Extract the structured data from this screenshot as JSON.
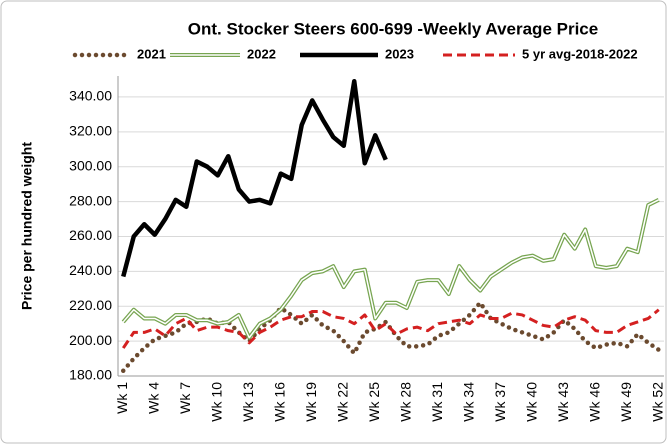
{
  "chart_data": {
    "type": "line",
    "title": "Ont. Stocker Steers 600-699 -Weekly Average Price",
    "y_label": "Price per hundred weight",
    "categories": [
      "Wk 1",
      null,
      null,
      "Wk 4",
      null,
      null,
      "Wk 7",
      null,
      null,
      "Wk 10",
      null,
      null,
      "Wk 13",
      null,
      null,
      "Wk 16",
      null,
      null,
      "Wk 19",
      null,
      null,
      "Wk 22",
      null,
      null,
      "Wk 25",
      null,
      null,
      "Wk 28",
      null,
      null,
      "Wk 31",
      null,
      null,
      "Wk 34",
      null,
      null,
      "Wk 37",
      null,
      null,
      "Wk 40",
      null,
      null,
      "Wk 43",
      null,
      null,
      "Wk 46",
      null,
      null,
      "Wk 49",
      null,
      null,
      "Wk 52"
    ],
    "series": [
      {
        "name": "2021",
        "color": "#6b4a2f",
        "line_style": "dotted",
        "values": [
          183,
          190,
          196,
          201,
          203,
          205,
          210,
          211,
          213,
          210,
          211,
          205,
          200,
          207,
          212,
          219,
          215,
          210,
          215,
          209,
          206,
          200,
          193,
          205,
          207,
          211,
          203,
          197,
          197,
          198,
          203,
          205,
          210,
          215,
          222,
          213,
          210,
          207,
          205,
          203,
          201,
          205,
          212,
          207,
          200,
          196,
          198,
          199,
          197,
          204,
          199,
          195
        ]
      },
      {
        "name": "2022",
        "color": "#77a551",
        "line_style": "double",
        "values": [
          211,
          218,
          213,
          213,
          210,
          215,
          215,
          212,
          212,
          210,
          211,
          215,
          202,
          210,
          213,
          218,
          226,
          235,
          239,
          240,
          243,
          231,
          240,
          241,
          213,
          222,
          222,
          219,
          234,
          235,
          235,
          227,
          243,
          235,
          229,
          237,
          241,
          245,
          248,
          249,
          246,
          247,
          261,
          253,
          264,
          243,
          242,
          243,
          253,
          251,
          278,
          281
        ]
      },
      {
        "name": "2023",
        "color": "#000000",
        "line_style": "solid",
        "values": [
          237,
          260,
          267,
          261,
          270,
          281,
          277,
          303,
          300,
          295,
          306,
          287,
          280,
          281,
          279,
          296,
          293,
          324,
          338,
          327,
          317,
          312,
          349,
          302,
          318,
          304,
          null,
          null,
          null,
          null,
          null,
          null,
          null,
          null,
          null,
          null,
          null,
          null,
          null,
          null,
          null,
          null,
          null,
          null,
          null,
          null,
          null,
          null,
          null,
          null,
          null,
          null
        ]
      },
      {
        "name": "5 yr avg-2018-2022",
        "color": "#d42020",
        "line_style": "dashed",
        "values": [
          196,
          205,
          205,
          207,
          203,
          210,
          213,
          206,
          208,
          208,
          206,
          205,
          199,
          205,
          208,
          212,
          214,
          214,
          217,
          217,
          214,
          213,
          210,
          215,
          206,
          210,
          204,
          207,
          208,
          206,
          210,
          211,
          212,
          210,
          215,
          213,
          213,
          216,
          215,
          212,
          209,
          208,
          212,
          214,
          212,
          206,
          205,
          205,
          209,
          211,
          213,
          218
        ]
      }
    ],
    "ylim": [
      180,
      352
    ],
    "yticks": [
      {
        "value": 180,
        "label": "180.00"
      },
      {
        "value": 200,
        "label": "200.00"
      },
      {
        "value": 220,
        "label": "220.00"
      },
      {
        "value": 240,
        "label": "240.00"
      },
      {
        "value": 260,
        "label": "260.00"
      },
      {
        "value": 280,
        "label": "280.00"
      },
      {
        "value": 300,
        "label": "300.00"
      },
      {
        "value": 320,
        "label": "320.00"
      },
      {
        "value": 340,
        "label": "340.00"
      }
    ],
    "grid": true,
    "legend": "top"
  }
}
